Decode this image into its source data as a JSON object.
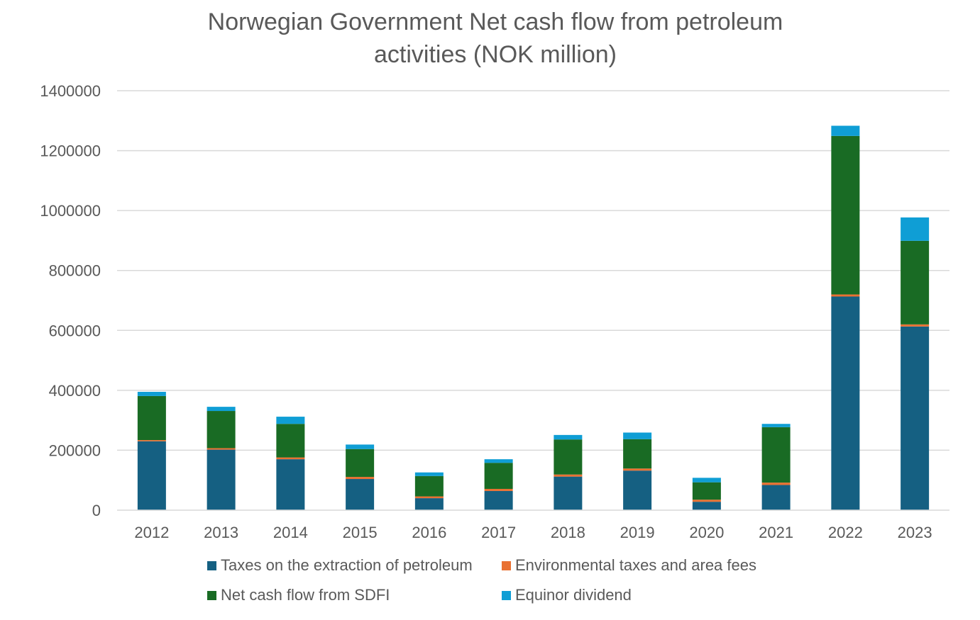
{
  "chart_data": {
    "type": "bar",
    "stacked": true,
    "title_lines": [
      "Norwegian Government Net cash flow from petroleum",
      "activities (NOK million)"
    ],
    "xlabel": "",
    "ylabel": "",
    "ylim": [
      0,
      1400000
    ],
    "yticks": [
      "0",
      "200000",
      "400000",
      "600000",
      "800000",
      "1000000",
      "1200000",
      "1400000"
    ],
    "grid": true,
    "legend_position": "bottom",
    "categories": [
      "2012",
      "2013",
      "2014",
      "2015",
      "2016",
      "2017",
      "2018",
      "2019",
      "2020",
      "2021",
      "2022",
      "2023"
    ],
    "series": [
      {
        "name": "Taxes on the extraction of petroleum",
        "color": "#156082",
        "values": [
          230000,
          202000,
          170000,
          104000,
          40000,
          64000,
          112000,
          132000,
          28000,
          84000,
          713000,
          613000
        ]
      },
      {
        "name": "Environmental taxes and area fees",
        "color": "#E97132",
        "values": [
          4000,
          5000,
          6000,
          7000,
          6000,
          7000,
          7000,
          7000,
          7000,
          8000,
          7000,
          7000
        ]
      },
      {
        "name": "Net cash flow from SDFI",
        "color": "#196B24",
        "values": [
          147000,
          124000,
          112000,
          93000,
          68000,
          87000,
          117000,
          98000,
          58000,
          185000,
          529000,
          279000
        ]
      },
      {
        "name": "Equinor dividend",
        "color": "#0F9ED5",
        "values": [
          14000,
          14000,
          24000,
          15000,
          12000,
          12000,
          15000,
          22000,
          15000,
          11000,
          34000,
          78000
        ]
      }
    ]
  }
}
